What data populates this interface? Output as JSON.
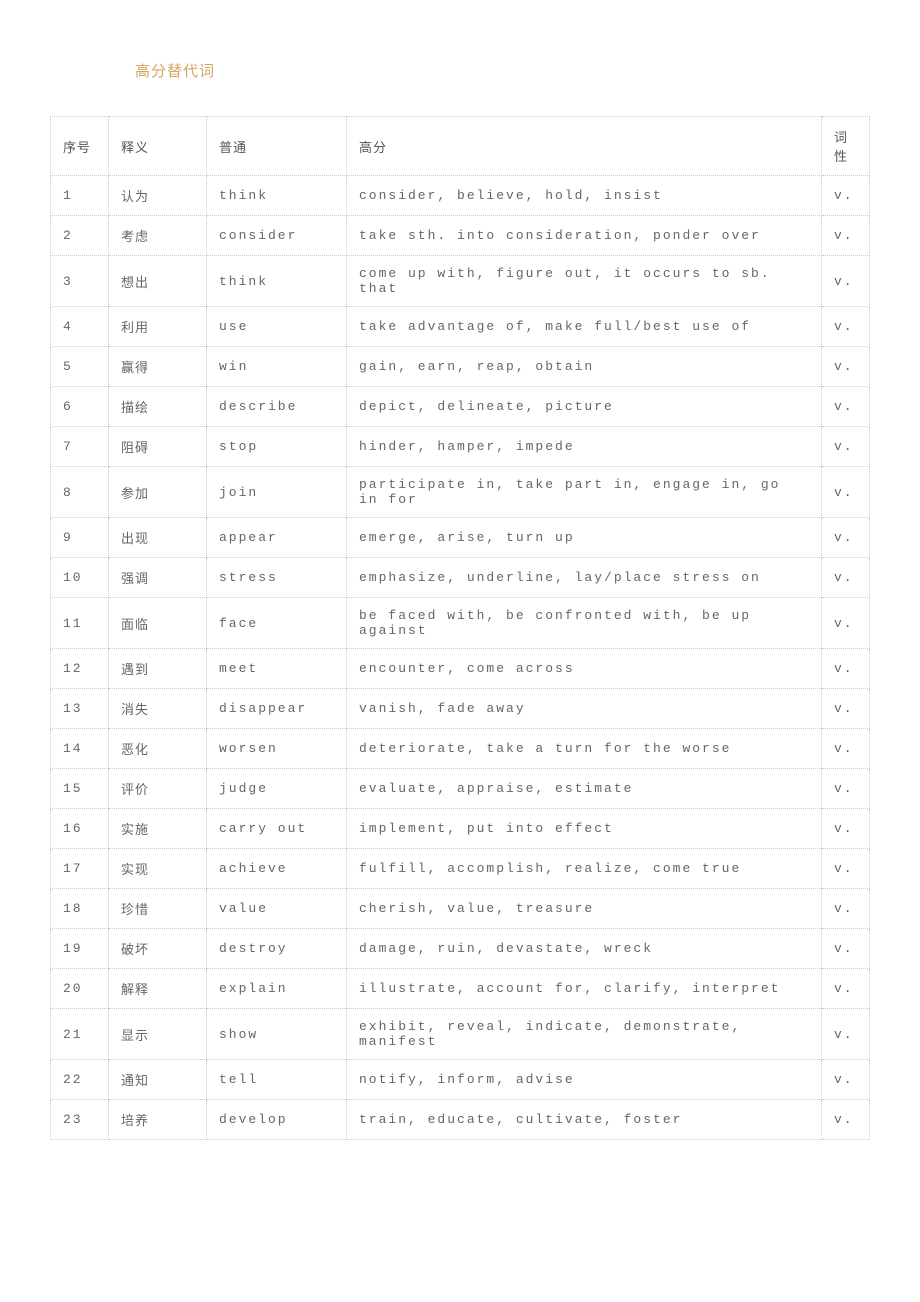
{
  "title": "高分替代词",
  "headers": {
    "num": "序号",
    "meaning": "释义",
    "common": "普通",
    "high": "高分",
    "pos": "词性"
  },
  "rows": [
    {
      "num": "1",
      "meaning": "认为",
      "common": "think",
      "high": "consider, believe, hold, insist",
      "pos": "v."
    },
    {
      "num": "2",
      "meaning": "考虑",
      "common": "consider",
      "high": "take sth. into consideration, ponder over",
      "pos": "v."
    },
    {
      "num": "3",
      "meaning": "想出",
      "common": "think",
      "high": "come up with, figure out, it occurs to sb. that",
      "pos": "v."
    },
    {
      "num": "4",
      "meaning": "利用",
      "common": "use",
      "high": "take advantage of, make full/best use of",
      "pos": "v."
    },
    {
      "num": "5",
      "meaning": "赢得",
      "common": "win",
      "high": "gain, earn, reap, obtain",
      "pos": "v."
    },
    {
      "num": "6",
      "meaning": "描绘",
      "common": "describe",
      "high": "depict, delineate, picture",
      "pos": "v."
    },
    {
      "num": "7",
      "meaning": "阻碍",
      "common": "stop",
      "high": "hinder, hamper, impede",
      "pos": "v."
    },
    {
      "num": "8",
      "meaning": "参加",
      "common": "join",
      "high": "participate in, take part in, engage in, go in for",
      "pos": "v."
    },
    {
      "num": "9",
      "meaning": "出现",
      "common": "appear",
      "high": "emerge, arise, turn up",
      "pos": "v."
    },
    {
      "num": "10",
      "meaning": "强调",
      "common": "stress",
      "high": "emphasize, underline, lay/place stress on",
      "pos": "v."
    },
    {
      "num": "11",
      "meaning": "面临",
      "common": "face",
      "high": "be faced with, be confronted with, be up against",
      "pos": "v."
    },
    {
      "num": "12",
      "meaning": "遇到",
      "common": "meet",
      "high": "encounter, come across",
      "pos": "v."
    },
    {
      "num": "13",
      "meaning": "消失",
      "common": "disappear",
      "high": "vanish, fade away",
      "pos": "v."
    },
    {
      "num": "14",
      "meaning": "恶化",
      "common": "worsen",
      "high": "deteriorate, take a turn for the worse",
      "pos": "v."
    },
    {
      "num": "15",
      "meaning": "评价",
      "common": "judge",
      "high": "evaluate, appraise, estimate",
      "pos": "v."
    },
    {
      "num": "16",
      "meaning": "实施",
      "common": "carry out",
      "high": "implement, put into effect",
      "pos": "v."
    },
    {
      "num": "17",
      "meaning": "实现",
      "common": "achieve",
      "high": "fulfill, accomplish, realize, come true",
      "pos": "v."
    },
    {
      "num": "18",
      "meaning": "珍惜",
      "common": "value",
      "high": "cherish, value, treasure",
      "pos": "v."
    },
    {
      "num": "19",
      "meaning": "破坏",
      "common": "destroy",
      "high": "damage, ruin, devastate, wreck",
      "pos": "v."
    },
    {
      "num": "20",
      "meaning": "解释",
      "common": "explain",
      "high": "illustrate, account for, clarify, interpret",
      "pos": "v."
    },
    {
      "num": "21",
      "meaning": "显示",
      "common": "show",
      "high": "exhibit, reveal, indicate, demonstrate, manifest",
      "pos": "v."
    },
    {
      "num": "22",
      "meaning": "通知",
      "common": "tell",
      "high": "notify, inform, advise",
      "pos": "v."
    },
    {
      "num": "23",
      "meaning": "培养",
      "common": "develop",
      "high": "train, educate, cultivate, foster",
      "pos": "v."
    }
  ]
}
